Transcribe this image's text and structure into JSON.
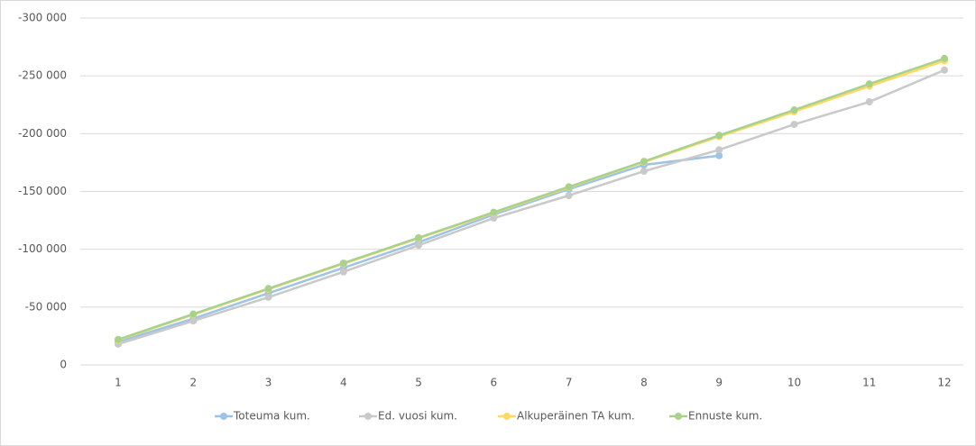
{
  "chart_data": {
    "type": "line",
    "categories": [
      "1",
      "2",
      "3",
      "4",
      "5",
      "6",
      "7",
      "8",
      "9",
      "10",
      "11",
      "12"
    ],
    "ylim": [
      0,
      -300000
    ],
    "yticks": [
      0,
      {
        "value": -50000,
        "label": "-50 000"
      },
      {
        "value": -100000,
        "label": "-100 000"
      },
      {
        "value": -150000,
        "label": "-150 000"
      },
      {
        "value": -200000,
        "label": "-200 000"
      },
      {
        "value": -250000,
        "label": "-250 000"
      },
      {
        "value": -300000,
        "label": "-300 000"
      }
    ],
    "grid": true,
    "legend": "bottom",
    "series": [
      {
        "name": "Toteuma kum.",
        "color": "#9dc3e6",
        "values": [
          -20000,
          -40000,
          -62000,
          -84000,
          -106000,
          -130000,
          -152000,
          -173000,
          -181000,
          null,
          null,
          null
        ]
      },
      {
        "name": "Ed. vuosi kum.",
        "color": "#c9c9c9",
        "values": [
          -18000,
          -38000,
          -58500,
          -80500,
          -103500,
          -127000,
          -146500,
          -167500,
          -186000,
          -208000,
          -227500,
          -255000
        ]
      },
      {
        "name": "Alkuperäinen TA kum.",
        "color": "#ffd966",
        "values": [
          -21500,
          -43500,
          -65500,
          -87500,
          -109500,
          -131500,
          -153500,
          -175500,
          -197500,
          -219000,
          -241000,
          -263000
        ]
      },
      {
        "name": "Ennuste kum.",
        "color": "#a9d18e",
        "values": [
          -22000,
          -44000,
          -66000,
          -88000,
          -110000,
          -132000,
          -154000,
          -176000,
          -198500,
          -220500,
          -243000,
          -265000
        ]
      }
    ]
  }
}
